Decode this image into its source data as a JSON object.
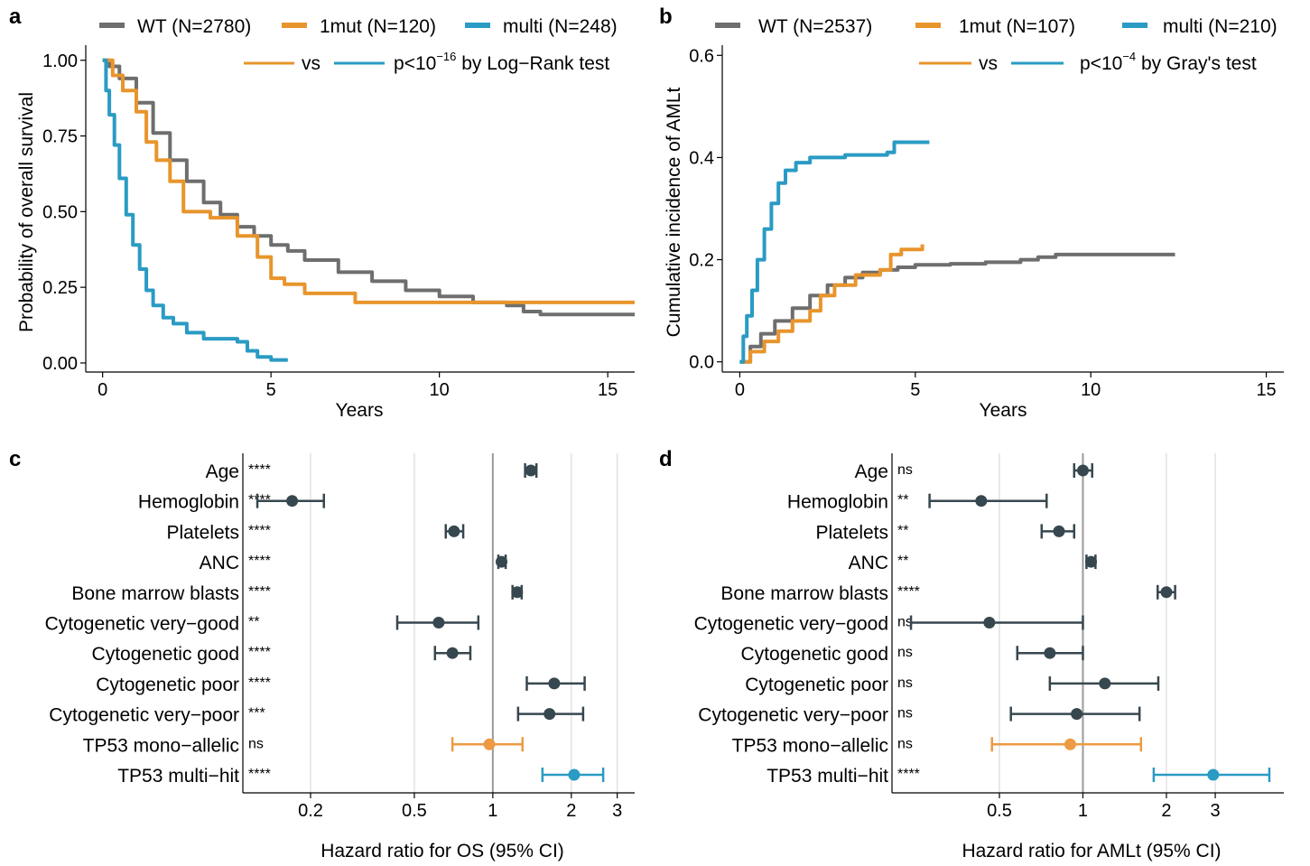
{
  "colors": {
    "wt": "#6e6e6e",
    "mono": "#e8952c",
    "multi": "#2a9bc4",
    "forest_point": "#37474f",
    "forest_mono": "#ec9a43",
    "forest_multi": "#2a9bc4"
  },
  "chart_data": [
    {
      "panel": "a",
      "type": "line",
      "xlabel": "Years",
      "ylabel": "Probability of overall survival",
      "xlim": [
        -0.5,
        15.8
      ],
      "ylim": [
        -0.03,
        1.05
      ],
      "xticks": [
        0,
        5,
        10,
        15
      ],
      "yticks": [
        "0.00",
        "0.25",
        "0.50",
        "0.75",
        "1.00"
      ],
      "legend": {
        "position": "top",
        "entries": [
          "WT (N=2780)",
          "1mut (N=120)",
          "multi (N=248)"
        ]
      },
      "annotation": {
        "vs": "vs",
        "p_prefix": "p<10",
        "p_exp": "−16",
        "p_suffix": " by Log−Rank test"
      },
      "series": [
        {
          "name": "WT (N=2780)",
          "color_key": "wt",
          "x": [
            0,
            0.2,
            0.5,
            1,
            1.5,
            2,
            2.5,
            3,
            3.5,
            4,
            4.5,
            5,
            5.5,
            6,
            7,
            8,
            9,
            10,
            11,
            12,
            12.5,
            13,
            14,
            15,
            15.8
          ],
          "y": [
            1,
            0.98,
            0.94,
            0.86,
            0.76,
            0.67,
            0.6,
            0.53,
            0.49,
            0.45,
            0.42,
            0.39,
            0.37,
            0.34,
            0.3,
            0.27,
            0.24,
            0.22,
            0.2,
            0.19,
            0.17,
            0.16,
            0.16,
            0.16,
            0.16
          ]
        },
        {
          "name": "1mut (N=120)",
          "color_key": "mono",
          "x": [
            0,
            0.3,
            0.6,
            1,
            1.3,
            1.6,
            2,
            2.4,
            3.2,
            4,
            4.6,
            5,
            5.4,
            6,
            7,
            7.5,
            10,
            15.8
          ],
          "y": [
            1,
            0.95,
            0.9,
            0.83,
            0.73,
            0.67,
            0.6,
            0.5,
            0.48,
            0.42,
            0.35,
            0.28,
            0.26,
            0.23,
            0.23,
            0.2,
            0.2,
            0.2
          ]
        },
        {
          "name": "multi (N=248)",
          "color_key": "multi",
          "x": [
            0,
            0.1,
            0.2,
            0.35,
            0.5,
            0.7,
            0.9,
            1.1,
            1.3,
            1.5,
            1.8,
            2.1,
            2.5,
            3,
            3.5,
            4,
            4.3,
            4.6,
            5,
            5.5
          ],
          "y": [
            1,
            0.9,
            0.82,
            0.72,
            0.61,
            0.49,
            0.39,
            0.31,
            0.24,
            0.19,
            0.15,
            0.13,
            0.1,
            0.08,
            0.08,
            0.07,
            0.04,
            0.02,
            0.01,
            0.01
          ]
        }
      ]
    },
    {
      "panel": "b",
      "type": "line",
      "xlabel": "Years",
      "ylabel": "Cumulative incidence of AMLt",
      "xlim": [
        -0.5,
        15.5
      ],
      "ylim": [
        -0.02,
        0.62
      ],
      "xticks": [
        0,
        5,
        10,
        15
      ],
      "yticks": [
        "0.0",
        "0.2",
        "0.4",
        "0.6"
      ],
      "legend": {
        "position": "top",
        "entries": [
          "WT (N=2537)",
          "1mut (N=107)",
          "multi (N=210)"
        ]
      },
      "annotation": {
        "vs": "vs",
        "p_prefix": "p<10",
        "p_exp": "−4",
        "p_suffix": " by Gray's test"
      },
      "series": [
        {
          "name": "WT (N=2537)",
          "color_key": "wt",
          "x": [
            0,
            0.3,
            0.6,
            1,
            1.5,
            2,
            2.5,
            3,
            3.5,
            4,
            4.5,
            5,
            6,
            7,
            8,
            8.5,
            9,
            9.5,
            10,
            12.4
          ],
          "y": [
            0,
            0.03,
            0.055,
            0.08,
            0.105,
            0.13,
            0.15,
            0.165,
            0.175,
            0.18,
            0.185,
            0.19,
            0.192,
            0.195,
            0.2,
            0.205,
            0.21,
            0.21,
            0.21,
            0.21
          ]
        },
        {
          "name": "1mut (N=107)",
          "color_key": "mono",
          "x": [
            0,
            0.3,
            0.7,
            1.1,
            1.5,
            2,
            2.3,
            2.7,
            3.3,
            4,
            4.3,
            4.6,
            5.2
          ],
          "y": [
            0,
            0.02,
            0.04,
            0.06,
            0.08,
            0.1,
            0.13,
            0.15,
            0.17,
            0.18,
            0.21,
            0.22,
            0.23
          ]
        },
        {
          "name": "multi (N=210)",
          "color_key": "multi",
          "x": [
            0,
            0.1,
            0.2,
            0.35,
            0.5,
            0.7,
            0.9,
            1.1,
            1.3,
            1.6,
            2,
            2.5,
            3,
            4.2,
            4.4,
            5.4
          ],
          "y": [
            0,
            0.05,
            0.09,
            0.14,
            0.2,
            0.26,
            0.31,
            0.35,
            0.375,
            0.39,
            0.4,
            0.4,
            0.405,
            0.41,
            0.43,
            0.43
          ]
        }
      ]
    },
    {
      "panel": "c",
      "type": "scatter",
      "subtype": "forest",
      "xlabel": "Hazard ratio for OS (95% CI)",
      "xscale": "log",
      "xlim": [
        0.11,
        3.5
      ],
      "xticks": [
        0.2,
        0.5,
        1,
        2,
        3
      ],
      "xtick_labels": [
        "0.2",
        "0.5",
        "1",
        "2",
        "3"
      ],
      "grid_x": [
        0.2,
        0.5,
        2,
        3
      ],
      "ref_x": 1,
      "rows": [
        {
          "label": "Age",
          "sig": "****",
          "hr": 1.4,
          "lo": 1.33,
          "hi": 1.47,
          "color_key": "forest_point"
        },
        {
          "label": "Hemoglobin",
          "sig": "****",
          "hr": 0.17,
          "lo": 0.125,
          "hi": 0.225,
          "color_key": "forest_point"
        },
        {
          "label": "Platelets",
          "sig": "****",
          "hr": 0.71,
          "lo": 0.66,
          "hi": 0.77,
          "color_key": "forest_point"
        },
        {
          "label": "ANC",
          "sig": "****",
          "hr": 1.08,
          "lo": 1.05,
          "hi": 1.12,
          "color_key": "forest_point"
        },
        {
          "label": "Bone marrow blasts",
          "sig": "****",
          "hr": 1.24,
          "lo": 1.19,
          "hi": 1.29,
          "color_key": "forest_point"
        },
        {
          "label": "Cytogenetic very−good",
          "sig": "**",
          "hr": 0.62,
          "lo": 0.43,
          "hi": 0.88,
          "color_key": "forest_point"
        },
        {
          "label": "Cytogenetic good",
          "sig": "****",
          "hr": 0.7,
          "lo": 0.6,
          "hi": 0.82,
          "color_key": "forest_point"
        },
        {
          "label": "Cytogenetic poor",
          "sig": "****",
          "hr": 1.72,
          "lo": 1.35,
          "hi": 2.25,
          "color_key": "forest_point"
        },
        {
          "label": "Cytogenetic very−poor",
          "sig": "***",
          "hr": 1.65,
          "lo": 1.25,
          "hi": 2.22,
          "color_key": "forest_point"
        },
        {
          "label": "TP53 mono−allelic",
          "sig": "ns",
          "hr": 0.97,
          "lo": 0.7,
          "hi": 1.3,
          "color_key": "forest_mono"
        },
        {
          "label": "TP53 multi−hit",
          "sig": "****",
          "hr": 2.05,
          "lo": 1.55,
          "hi": 2.65,
          "color_key": "forest_multi"
        }
      ]
    },
    {
      "panel": "d",
      "type": "scatter",
      "subtype": "forest",
      "xlabel": "Hazard ratio for AMLt (95% CI)",
      "xscale": "log",
      "xlim": [
        0.205,
        5.3
      ],
      "xticks": [
        0.5,
        1,
        2,
        3
      ],
      "xtick_labels": [
        "0.5",
        "1",
        "2",
        "3"
      ],
      "grid_x": [
        0.5,
        2,
        3
      ],
      "ref_x": 1,
      "rows": [
        {
          "label": "Age",
          "sig": "ns",
          "hr": 1,
          "lo": 0.93,
          "hi": 1.08,
          "color_key": "forest_point"
        },
        {
          "label": "Hemoglobin",
          "sig": "**",
          "hr": 0.43,
          "lo": 0.28,
          "hi": 0.74,
          "color_key": "forest_point"
        },
        {
          "label": "Platelets",
          "sig": "**",
          "hr": 0.82,
          "lo": 0.71,
          "hi": 0.93,
          "color_key": "forest_point"
        },
        {
          "label": "ANC",
          "sig": "**",
          "hr": 1.07,
          "lo": 1.03,
          "hi": 1.11,
          "color_key": "forest_point"
        },
        {
          "label": "Bone marrow blasts",
          "sig": "****",
          "hr": 2,
          "lo": 1.86,
          "hi": 2.15,
          "color_key": "forest_point"
        },
        {
          "label": "Cytogenetic very−good",
          "sig": "ns",
          "hr": 0.46,
          "lo": 0.24,
          "hi": 1,
          "color_key": "forest_point"
        },
        {
          "label": "Cytogenetic good",
          "sig": "ns",
          "hr": 0.76,
          "lo": 0.58,
          "hi": 1,
          "color_key": "forest_point"
        },
        {
          "label": "Cytogenetic poor",
          "sig": "ns",
          "hr": 1.2,
          "lo": 0.76,
          "hi": 1.87,
          "color_key": "forest_point"
        },
        {
          "label": "Cytogenetic very−poor",
          "sig": "ns",
          "hr": 0.95,
          "lo": 0.55,
          "hi": 1.6,
          "color_key": "forest_point"
        },
        {
          "label": "TP53 mono−allelic",
          "sig": "ns",
          "hr": 0.9,
          "lo": 0.47,
          "hi": 1.62,
          "color_key": "forest_mono"
        },
        {
          "label": "TP53 multi−hit",
          "sig": "****",
          "hr": 2.95,
          "lo": 1.8,
          "hi": 4.7,
          "color_key": "forest_multi"
        }
      ]
    }
  ]
}
